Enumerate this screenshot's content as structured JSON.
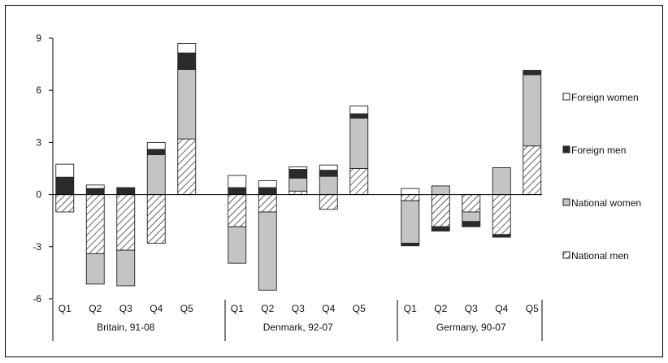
{
  "chart_data": {
    "type": "bar",
    "stacked": true,
    "title": "",
    "xlabel": "",
    "ylabel": "",
    "ylim": [
      -6,
      9
    ],
    "yticks": [
      9,
      6,
      3,
      0,
      -3,
      -6
    ],
    "grid": false,
    "legend_position": "right",
    "groups": [
      {
        "label": "Britain, 91-08",
        "categories": [
          "Q1",
          "Q2",
          "Q3",
          "Q4",
          "Q5"
        ],
        "series": {
          "national_men": [
            -1.0,
            -3.4,
            -3.2,
            -2.8,
            3.2
          ],
          "national_women": [
            0.0,
            -1.75,
            -2.05,
            2.3,
            4.0
          ],
          "foreign_men": [
            1.0,
            0.35,
            0.4,
            0.3,
            0.95
          ],
          "foreign_women": [
            0.75,
            0.2,
            0.0,
            0.4,
            0.55
          ]
        }
      },
      {
        "label": "Denmark, 92-07",
        "categories": [
          "Q1",
          "Q2",
          "Q3",
          "Q4",
          "Q5"
        ],
        "series": {
          "national_men": [
            -1.85,
            -1.0,
            0.2,
            -0.85,
            1.5
          ],
          "national_women": [
            -2.1,
            -4.5,
            0.75,
            1.05,
            2.9
          ],
          "foreign_men": [
            0.4,
            0.4,
            0.5,
            0.35,
            0.25
          ],
          "foreign_women": [
            0.7,
            0.4,
            0.15,
            0.3,
            0.45
          ]
        }
      },
      {
        "label": "Germany, 90-07",
        "categories": [
          "Q1",
          "Q2",
          "Q3",
          "Q4",
          "Q5"
        ],
        "series": {
          "national_men": [
            -0.35,
            -1.85,
            -1.0,
            -2.3,
            2.8
          ],
          "national_women": [
            -2.45,
            0.5,
            -0.55,
            1.55,
            4.1
          ],
          "foreign_men": [
            -0.15,
            -0.25,
            -0.3,
            -0.15,
            0.25
          ],
          "foreign_women": [
            0.35,
            0.0,
            0.0,
            0.0,
            0.0
          ]
        }
      }
    ],
    "legend": [
      {
        "key": "foreign_women",
        "label": "Foreign women",
        "color": "#ffffff",
        "pattern": "solid"
      },
      {
        "key": "foreign_men",
        "label": "Foreign men",
        "color": "#2b2b2b",
        "pattern": "solid"
      },
      {
        "key": "national_women",
        "label": "National women",
        "color": "#c4c4c4",
        "pattern": "solid"
      },
      {
        "key": "national_men",
        "label": "National men",
        "color": "#ffffff",
        "pattern": "hatched"
      }
    ],
    "stack_order": [
      "national_men",
      "national_women",
      "foreign_men",
      "foreign_women"
    ]
  }
}
